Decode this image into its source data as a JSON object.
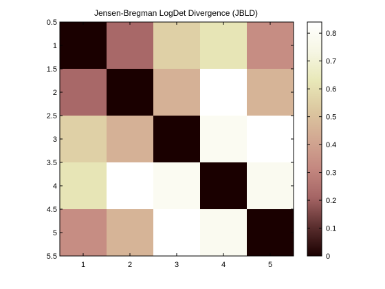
{
  "chart_data": {
    "type": "heatmap",
    "title": "Jensen-Bregman LogDet Divergence (JBLD)",
    "x_categories": [
      "1",
      "2",
      "3",
      "4",
      "5"
    ],
    "y_categories": [
      "1",
      "2",
      "3",
      "4",
      "5"
    ],
    "xlim": [
      0.5,
      5.5
    ],
    "ylim": [
      0.5,
      5.5
    ],
    "x_ticks": [
      "1",
      "2",
      "3",
      "4",
      "5"
    ],
    "y_ticks": [
      "0.5",
      "1",
      "1.5",
      "2",
      "2.5",
      "3",
      "3.5",
      "4",
      "4.5",
      "5",
      "5.5"
    ],
    "values": [
      [
        0.0,
        0.22,
        0.55,
        0.62,
        0.33
      ],
      [
        0.22,
        0.0,
        0.45,
        0.84,
        0.46
      ],
      [
        0.55,
        0.45,
        0.0,
        0.79,
        0.84
      ],
      [
        0.62,
        0.84,
        0.79,
        0.0,
        0.78
      ],
      [
        0.33,
        0.46,
        0.84,
        0.78,
        0.0
      ]
    ],
    "colorbar": {
      "range": [
        0,
        0.84
      ],
      "ticks": [
        "0",
        "0.1",
        "0.2",
        "0.3",
        "0.4",
        "0.5",
        "0.6",
        "0.7",
        "0.8"
      ],
      "colors": [
        "#1a0000",
        "#5a2e2e",
        "#a56565",
        "#c48880",
        "#d2a892",
        "#dcc8a0",
        "#e8e8b8",
        "#f6f6e4",
        "#ffffff"
      ]
    },
    "grid": false,
    "legend": "right"
  }
}
